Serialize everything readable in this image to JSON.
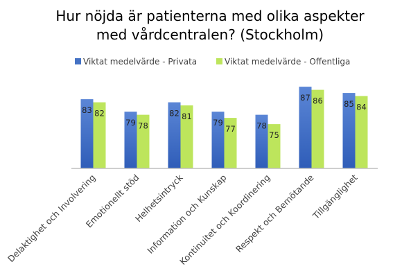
{
  "chart_data": {
    "type": "bar",
    "title": [
      "Hur nöjda är patienterna med olika aspekter",
      "med vårdcentralen? (Stockholm)"
    ],
    "categories": [
      "Delaktighet och Involvering",
      "Emotionellt stöd",
      "Helhetsintryck",
      "Information och Kunskap",
      "Kontinuitet och Koordinering",
      "Respekt och Bemötande",
      "Tillgänglighet"
    ],
    "series": [
      {
        "name": "Viktat medelvärde - Privata",
        "color": "#4472C4",
        "values": [
          83,
          79,
          82,
          79,
          78,
          87,
          85
        ]
      },
      {
        "name": "Viktat medelvärde - Offentliga",
        "color": "#BDE55C",
        "values": [
          82,
          78,
          81,
          77,
          75,
          86,
          84
        ]
      }
    ],
    "xlabel": "",
    "ylabel": "",
    "ylim": [
      60.8,
      100
    ],
    "grid": false,
    "legend": "top-center",
    "data_labels": true
  }
}
